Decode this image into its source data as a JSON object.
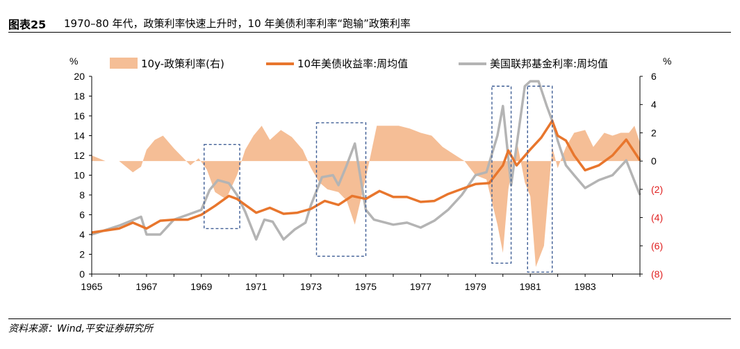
{
  "header": {
    "figure_no": "图表25",
    "title": "1970–80 年代，政策利率快速上升时，10 年美债利率利率“跑输”政策利率"
  },
  "footer": {
    "source": "资料来源：Wind,平安证券研究所"
  },
  "colors": {
    "spread": "#F5BE96",
    "treasury": "#E8762D",
    "fedfunds": "#B4B4B4",
    "box": "#3F5E95",
    "negative_tick": "#E02020"
  },
  "chart_data": {
    "type": "line",
    "title": "",
    "legend": {
      "placement": "top",
      "entries": [
        "10y-政策利率(右)",
        "10年美债收益率:周均值",
        "美国联邦基金利率:周均值"
      ]
    },
    "left_axis": {
      "unit": "%",
      "min": 0,
      "max": 20,
      "ticks": [
        0,
        2,
        4,
        6,
        8,
        10,
        12,
        14,
        16,
        18,
        20
      ]
    },
    "right_axis": {
      "unit": "%",
      "min": -8,
      "max": 6,
      "ticks": [
        6,
        4,
        2,
        0,
        -2,
        -4,
        -6,
        -8
      ],
      "tick_labels": [
        "6",
        "4",
        "2",
        "0",
        "(2)",
        "(4)",
        "(6)",
        "(8)"
      ]
    },
    "x_axis": {
      "min": 1965,
      "max": 1985,
      "tick_labels": [
        "1965",
        "1967",
        "1969",
        "1971",
        "1973",
        "1975",
        "1977",
        "1979",
        "1981",
        "1983"
      ]
    },
    "series": [
      {
        "name": "10y-政策利率(右)",
        "axis": "right",
        "style": "area",
        "x": [
          1965.0,
          1965.5,
          1966.0,
          1966.5,
          1966.8,
          1967.0,
          1967.3,
          1967.6,
          1968.0,
          1968.3,
          1968.6,
          1968.9,
          1969.2,
          1969.5,
          1969.9,
          1970.3,
          1970.6,
          1970.9,
          1971.2,
          1971.5,
          1971.9,
          1972.3,
          1972.7,
          1973.0,
          1973.3,
          1973.6,
          1974.0,
          1974.3,
          1974.6,
          1975.0,
          1975.4,
          1975.8,
          1976.2,
          1976.6,
          1977.0,
          1977.4,
          1977.8,
          1978.2,
          1978.6,
          1979.0,
          1979.4,
          1979.8,
          1980.0,
          1980.2,
          1980.5,
          1980.8,
          1981.0,
          1981.2,
          1981.5,
          1981.8,
          1982.0,
          1982.3,
          1982.6,
          1983.0,
          1983.3,
          1983.7,
          1984.0,
          1984.3,
          1984.6,
          1984.8,
          1985.0
        ],
        "values": [
          0.4,
          0.0,
          0.0,
          -0.8,
          -0.4,
          0.8,
          1.5,
          1.8,
          0.9,
          0.3,
          -0.3,
          0.2,
          -0.6,
          -2.2,
          -2.7,
          -1.0,
          0.8,
          1.8,
          2.5,
          1.5,
          2.2,
          1.7,
          0.8,
          -0.5,
          -1.5,
          -2.0,
          -2.2,
          -2.8,
          -4.5,
          -1.2,
          2.5,
          2.5,
          2.5,
          2.3,
          2.0,
          1.8,
          1.0,
          0.5,
          0.0,
          -1.0,
          -1.3,
          -4.5,
          -6.5,
          -2.0,
          1.5,
          -1.5,
          -2.5,
          -7.5,
          -6.0,
          1.0,
          -0.5,
          1.0,
          2.0,
          2.2,
          1.0,
          2.0,
          1.8,
          2.0,
          2.0,
          2.5,
          1.3
        ]
      },
      {
        "name": "10年美债收益率:周均值",
        "axis": "left",
        "style": "line",
        "x": [
          1965.0,
          1966.0,
          1966.5,
          1967.0,
          1967.5,
          1968.0,
          1968.5,
          1969.0,
          1969.5,
          1970.0,
          1970.3,
          1970.6,
          1971.0,
          1971.5,
          1972.0,
          1972.5,
          1973.0,
          1973.5,
          1974.0,
          1974.5,
          1975.0,
          1975.5,
          1976.0,
          1976.5,
          1977.0,
          1977.5,
          1978.0,
          1978.5,
          1979.0,
          1979.5,
          1980.0,
          1980.2,
          1980.5,
          1981.0,
          1981.4,
          1981.8,
          1982.0,
          1982.3,
          1982.6,
          1983.0,
          1983.5,
          1984.0,
          1984.5,
          1985.0
        ],
        "values": [
          4.2,
          4.6,
          5.2,
          4.6,
          5.4,
          5.5,
          5.5,
          6.0,
          6.9,
          7.9,
          7.6,
          7.0,
          6.2,
          6.7,
          6.1,
          6.2,
          6.6,
          7.4,
          7.0,
          7.9,
          7.6,
          8.4,
          7.8,
          7.8,
          7.3,
          7.4,
          8.1,
          8.6,
          9.1,
          9.2,
          11.0,
          12.5,
          11.0,
          12.6,
          13.8,
          15.5,
          14.0,
          13.5,
          12.0,
          10.5,
          11.0,
          12.0,
          13.6,
          11.5
        ]
      },
      {
        "name": "美国联邦基金利率:周均值",
        "axis": "left",
        "style": "line",
        "x": [
          1965.0,
          1966.0,
          1966.8,
          1967.0,
          1967.5,
          1968.0,
          1968.5,
          1969.0,
          1969.3,
          1969.6,
          1970.0,
          1970.3,
          1970.6,
          1971.0,
          1971.3,
          1971.6,
          1972.0,
          1972.4,
          1972.8,
          1973.0,
          1973.4,
          1973.8,
          1974.0,
          1974.3,
          1974.6,
          1975.0,
          1975.3,
          1976.0,
          1976.5,
          1977.0,
          1977.5,
          1978.0,
          1978.5,
          1979.0,
          1979.4,
          1979.8,
          1980.0,
          1980.3,
          1980.5,
          1980.8,
          1981.0,
          1981.3,
          1981.6,
          1981.8,
          1982.0,
          1982.3,
          1982.6,
          1983.0,
          1983.5,
          1984.0,
          1984.5,
          1985.0
        ],
        "values": [
          4.0,
          4.9,
          5.8,
          4.0,
          4.0,
          5.5,
          6.0,
          6.5,
          8.5,
          9.5,
          9.2,
          8.0,
          6.3,
          3.5,
          5.5,
          5.3,
          3.5,
          4.5,
          5.2,
          7.0,
          9.8,
          10.0,
          9.0,
          11.0,
          13.2,
          6.5,
          5.5,
          5.0,
          5.2,
          4.7,
          5.4,
          6.5,
          8.0,
          10.0,
          10.3,
          14.0,
          17.0,
          9.0,
          13.0,
          19.0,
          19.5,
          19.5,
          17.0,
          15.5,
          13.5,
          11.0,
          10.0,
          8.7,
          9.5,
          10.0,
          11.5,
          8.0
        ]
      }
    ],
    "boxes": [
      {
        "x": [
          1969.1,
          1970.4
        ],
        "y": [
          4.6,
          13.1
        ]
      },
      {
        "x": [
          1973.2,
          1975.0
        ],
        "y": [
          1.8,
          15.3
        ]
      },
      {
        "x": [
          1979.6,
          1980.3
        ],
        "y": [
          1.1,
          19.0
        ]
      },
      {
        "x": [
          1980.9,
          1981.8
        ],
        "y": [
          0.2,
          19.0
        ]
      }
    ]
  }
}
